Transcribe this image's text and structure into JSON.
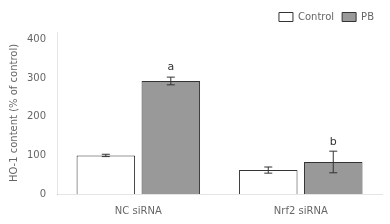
{
  "chart_data": {
    "type": "bar",
    "categories": [
      "NC siRNA",
      "Nrf2 siRNA"
    ],
    "series": [
      {
        "name": "Control",
        "color": "#ffffff",
        "values": [
          100,
          62
        ],
        "errors": [
          3,
          8
        ]
      },
      {
        "name": "PB",
        "color": "#999999",
        "values": [
          293,
          83
        ],
        "errors": [
          10,
          28
        ]
      }
    ],
    "ylabel": "HO-1 content (% of control)",
    "ylim": [
      0,
      420
    ],
    "yticks": [
      0,
      100,
      200,
      300,
      400
    ],
    "annotations": [
      {
        "text": "a",
        "series": "PB",
        "category": "NC siRNA"
      },
      {
        "text": "b",
        "series": "PB",
        "category": "Nrf2 siRNA"
      }
    ],
    "grid": false,
    "legend": "upper right"
  }
}
